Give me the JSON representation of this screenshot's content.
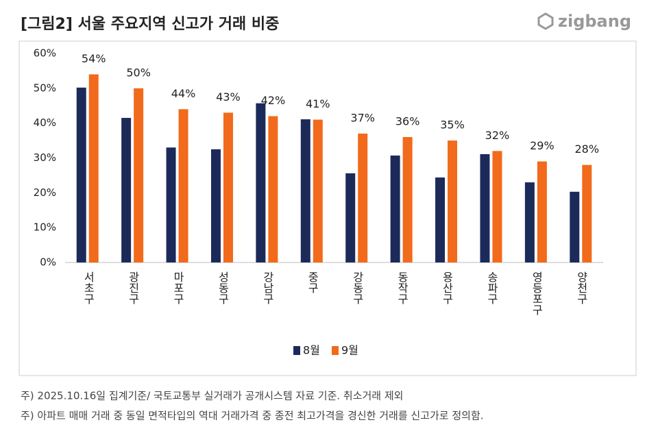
{
  "brand": "zigbang",
  "chart_data": {
    "type": "bar",
    "title": "[그림2] 서울 주요지역 신고가 거래 비중",
    "categories": [
      "서초구",
      "광진구",
      "마포구",
      "성동구",
      "강남구",
      "중구",
      "강동구",
      "동작구",
      "용산구",
      "송파구",
      "영등포구",
      "양천구"
    ],
    "series": [
      {
        "name": "8월",
        "color": "#1c2a5a",
        "values": [
          50.2,
          41.5,
          33,
          32.5,
          45.7,
          41.1,
          25.6,
          30.7,
          24.4,
          31.1,
          23,
          20.3
        ]
      },
      {
        "name": "9월",
        "color": "#f26a1b",
        "values": [
          54,
          50,
          44,
          43,
          42,
          41,
          37,
          36,
          35,
          32,
          29,
          28
        ],
        "value_labels": [
          "54%",
          "50%",
          "44%",
          "43%",
          "42%",
          "41%",
          "37%",
          "36%",
          "35%",
          "32%",
          "29%",
          "28%"
        ]
      }
    ],
    "ylim": [
      0,
      60
    ],
    "yticks": [
      {
        "value": 0,
        "label": "0%"
      },
      {
        "value": 10,
        "label": "10%"
      },
      {
        "value": 20,
        "label": "20%"
      },
      {
        "value": 30,
        "label": "30%"
      },
      {
        "value": 40,
        "label": "40%"
      },
      {
        "value": 50,
        "label": "50%"
      },
      {
        "value": 60,
        "label": "60%"
      }
    ],
    "grid": false,
    "legend": "bottom"
  },
  "notes": [
    "주) 2025.10.16일 집계기준/ 국토교통부 실거래가 공개시스템 자료 기준. 취소거래 제외",
    "주) 아파트 매매 거래 중 동일 면적타입의 역대 거래가격 중 종전 최고가격을 경신한 거래를 신고가로 정의함."
  ]
}
